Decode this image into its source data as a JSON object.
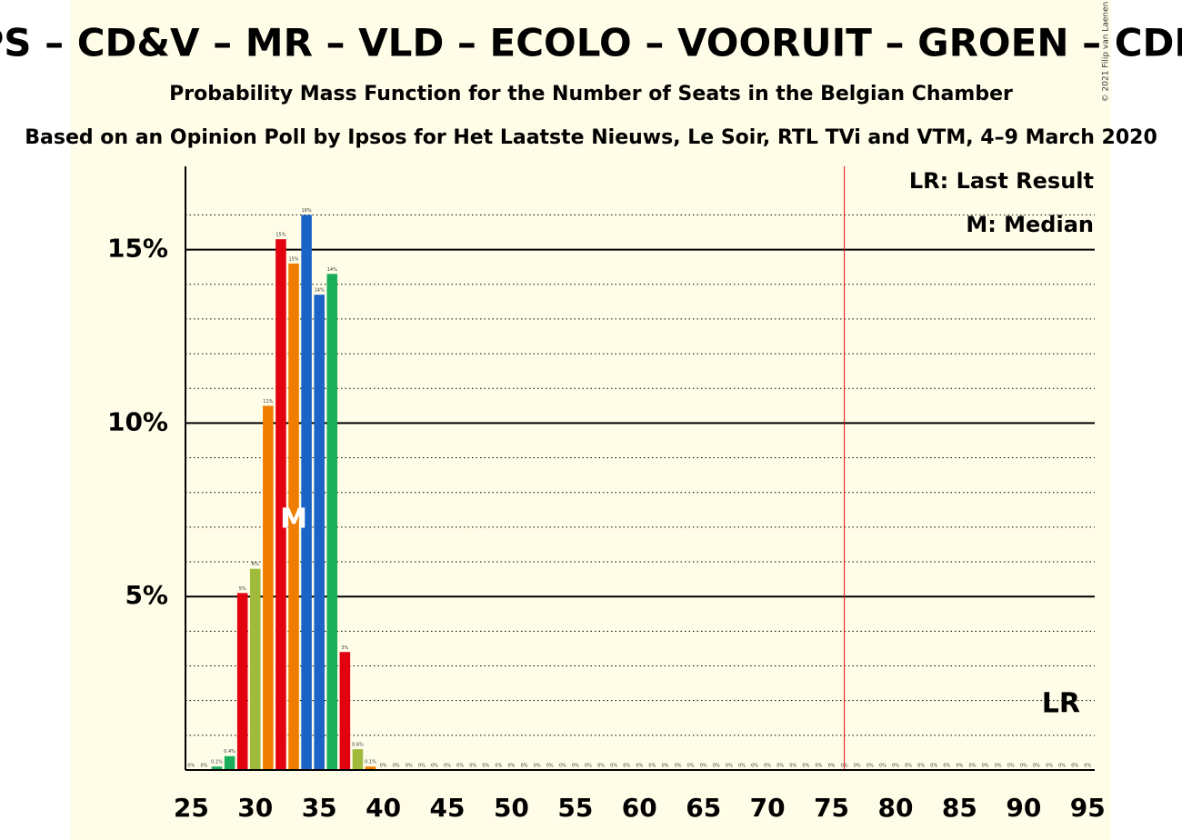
{
  "chart_data": {
    "type": "bar",
    "title": "PS – CD&V – MR – VLD – ECOLO – VOORUIT – GROEN – CDH",
    "subtitle": "Probability Mass Function for the Number of Seats in the Belgian Chamber",
    "source": "Based on an Opinion Poll by Ipsos for Het Laatste Nieuws, Le Soir, RTL TVi and VTM, 4–9 March 2020",
    "copyright": "© 2021 Filip van Laenen",
    "legend": [
      "LR: Last Result",
      "M: Median"
    ],
    "median": 33,
    "median_label": "M",
    "last_result": 76,
    "last_result_label": "LR",
    "x": [
      25,
      26,
      27,
      28,
      29,
      30,
      31,
      32,
      33,
      34,
      35,
      36,
      37,
      38,
      39,
      40,
      41,
      42,
      43,
      44,
      45,
      46,
      47,
      48,
      49,
      50,
      51,
      52,
      53,
      54,
      55,
      56,
      57,
      58,
      59,
      60,
      61,
      62,
      63,
      64,
      65,
      66,
      67,
      68,
      69,
      70,
      71,
      72,
      73,
      74,
      75,
      76,
      77,
      78,
      79,
      80,
      81,
      82,
      83,
      84,
      85,
      86,
      87,
      88,
      89,
      90,
      91,
      92,
      93,
      94,
      95
    ],
    "values": [
      0,
      0,
      0.1,
      0.4,
      5.1,
      5.8,
      10.5,
      15.3,
      14.6,
      16.0,
      13.7,
      14.3,
      3.4,
      0.6,
      0.1,
      0,
      0,
      0,
      0,
      0,
      0,
      0,
      0,
      0,
      0,
      0,
      0,
      0,
      0,
      0,
      0,
      0,
      0,
      0,
      0,
      0,
      0,
      0,
      0,
      0,
      0,
      0,
      0,
      0,
      0,
      0,
      0,
      0,
      0,
      0,
      0,
      0,
      0,
      0,
      0,
      0,
      0,
      0,
      0,
      0,
      0,
      0,
      0,
      0,
      0,
      0,
      0,
      0,
      0,
      0,
      0
    ],
    "value_labels": [
      "0%",
      "0%",
      "0.1%",
      "0.4%",
      "5%",
      "6%",
      "11%",
      "15%",
      "15%",
      "16%",
      "14%",
      "14%",
      "3%",
      "0.6%",
      "0.1%",
      "0%",
      "0%",
      "0%",
      "0%",
      "0%",
      "0%",
      "0%",
      "0%",
      "0%",
      "0%",
      "0%",
      "0%",
      "0%",
      "0%",
      "0%",
      "0%",
      "0%",
      "0%",
      "0%",
      "0%",
      "0%",
      "0%",
      "0%",
      "0%",
      "0%",
      "0%",
      "0%",
      "0%",
      "0%",
      "0%",
      "0%",
      "0%",
      "0%",
      "0%",
      "0%",
      "0%",
      "0%",
      "0%",
      "0%",
      "0%",
      "0%",
      "0%",
      "0%",
      "0%",
      "0%",
      "0%",
      "0%",
      "0%",
      "0%",
      "0%",
      "0%",
      "0%",
      "0%",
      "0%",
      "0%",
      "0%"
    ],
    "colors": [
      "#e3000f",
      "#ef7d00",
      "#1aae5a",
      "#1aae5a",
      "#e3000f",
      "#a0ba3c",
      "#ef7d00",
      "#e3000f",
      "#ef7d00",
      "#1a63c7",
      "#1a63c7",
      "#1aae5a",
      "#e3000f",
      "#a0ba3c",
      "#ef7d00",
      "#e3000f",
      "#e3000f",
      "#e3000f",
      "#e3000f",
      "#e3000f",
      "#e3000f",
      "#e3000f",
      "#e3000f",
      "#e3000f",
      "#e3000f",
      "#e3000f",
      "#e3000f",
      "#e3000f",
      "#e3000f",
      "#e3000f",
      "#e3000f",
      "#e3000f",
      "#e3000f",
      "#e3000f",
      "#e3000f",
      "#e3000f",
      "#e3000f",
      "#e3000f",
      "#e3000f",
      "#e3000f",
      "#e3000f",
      "#e3000f",
      "#e3000f",
      "#e3000f",
      "#e3000f",
      "#e3000f",
      "#e3000f",
      "#e3000f",
      "#e3000f",
      "#e3000f",
      "#e3000f",
      "#e3000f",
      "#e3000f",
      "#e3000f",
      "#e3000f",
      "#e3000f",
      "#e3000f",
      "#e3000f",
      "#e3000f",
      "#e3000f",
      "#e3000f",
      "#e3000f",
      "#e3000f",
      "#e3000f",
      "#e3000f",
      "#e3000f",
      "#e3000f",
      "#e3000f",
      "#e3000f",
      "#e3000f",
      "#e3000f"
    ],
    "xlim": [
      24.55,
      95.55
    ],
    "xticks": [
      25,
      30,
      35,
      40,
      45,
      50,
      55,
      60,
      65,
      70,
      75,
      80,
      85,
      90,
      95
    ],
    "ylim": [
      0,
      17.4
    ],
    "yticks": [
      {
        "value": 5,
        "label": "5%"
      },
      {
        "value": 10,
        "label": "10%"
      },
      {
        "value": 15,
        "label": "15%"
      }
    ],
    "minor_gridlines": [
      1,
      2,
      3,
      4,
      6,
      7,
      8,
      9,
      11,
      12,
      13,
      14,
      16
    ],
    "grid": true
  }
}
